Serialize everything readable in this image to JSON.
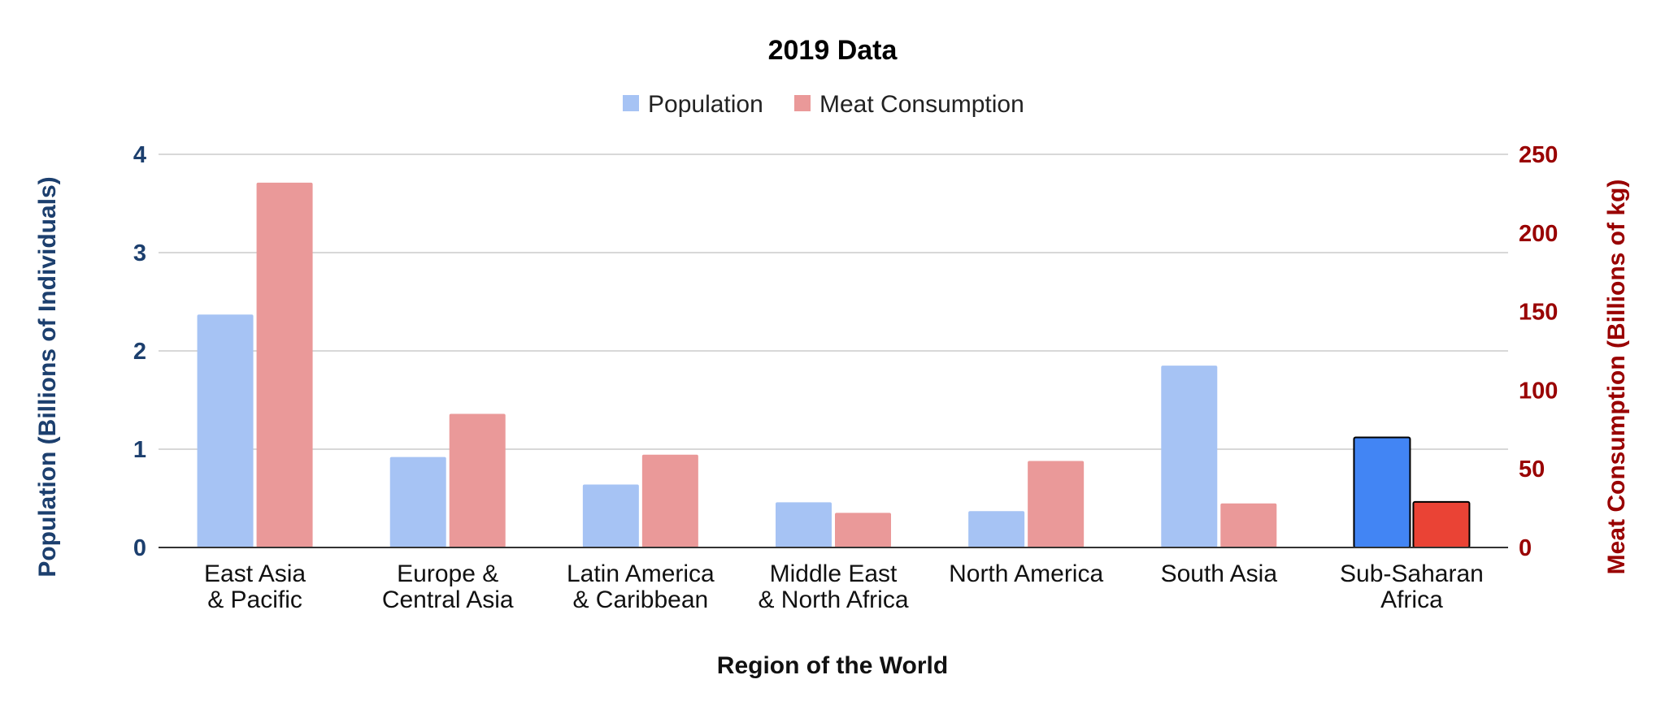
{
  "chart_data": {
    "type": "bar",
    "title": "2019 Data",
    "xlabel": "Region of the World",
    "ylabel_left": "Population (Billions of Individuals)",
    "ylabel_right": "Meat Consumption (Billions of kg)",
    "categories": [
      [
        "East Asia",
        "& Pacific"
      ],
      [
        "Europe &",
        "Central Asia"
      ],
      [
        "Latin America",
        "& Caribbean"
      ],
      [
        "Middle East",
        "& North Africa"
      ],
      [
        "North America"
      ],
      [
        "South Asia"
      ],
      [
        "Sub-Saharan",
        "Africa"
      ]
    ],
    "series": [
      {
        "name": "Population",
        "axis": "left",
        "color": "#a6c3f4",
        "highlight_color": "#4285f4",
        "values": [
          2.37,
          0.92,
          0.64,
          0.46,
          0.37,
          1.85,
          1.12
        ]
      },
      {
        "name": "Meat Consumption",
        "axis": "right",
        "color": "#ea9999",
        "highlight_color": "#ea4335",
        "values": [
          232,
          85,
          59,
          22,
          55,
          28,
          29
        ]
      }
    ],
    "highlighted_category_index": 6,
    "ylim_left": [
      0,
      4
    ],
    "yticks_left": [
      0,
      1,
      2,
      3,
      4
    ],
    "ylim_right": [
      0,
      250
    ],
    "yticks_right": [
      0,
      50,
      100,
      150,
      200,
      250
    ],
    "left_axis_color": "#1c3f6e",
    "right_axis_color": "#990000",
    "grid": true,
    "legend_position": "top-center"
  }
}
